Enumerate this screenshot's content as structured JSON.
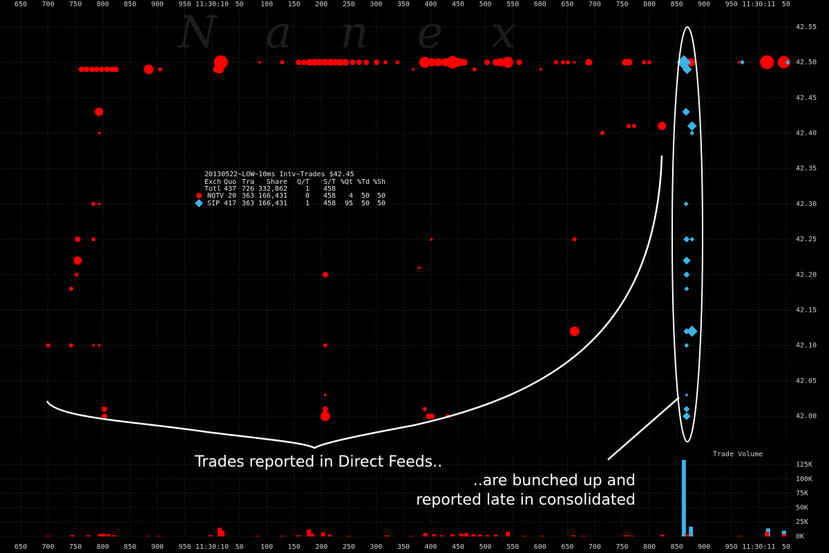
{
  "chart_data": [
    {
      "type": "scatter",
      "watermark": "Nanex",
      "xlim": [
        612,
        2059
      ],
      "xticks": [
        650,
        700,
        750,
        800,
        850,
        900,
        950,
        {
          "value": 1000,
          "label": "11:30:10"
        },
        {
          "value": 1050,
          "label": "50"
        },
        {
          "value": 1100,
          "label": "100"
        },
        {
          "value": 1150,
          "label": "150"
        },
        {
          "value": 1200,
          "label": "200"
        },
        {
          "value": 1250,
          "label": "250"
        },
        {
          "value": 1300,
          "label": "300"
        },
        {
          "value": 1350,
          "label": "350"
        },
        {
          "value": 1400,
          "label": "400"
        },
        {
          "value": 1450,
          "label": "450"
        },
        {
          "value": 1500,
          "label": "500"
        },
        {
          "value": 1550,
          "label": "550"
        },
        {
          "value": 1600,
          "label": "600"
        },
        {
          "value": 1650,
          "label": "650"
        },
        {
          "value": 1700,
          "label": "700"
        },
        {
          "value": 1750,
          "label": "750"
        },
        {
          "value": 1800,
          "label": "800"
        },
        {
          "value": 1850,
          "label": "850"
        },
        {
          "value": 1900,
          "label": "900"
        },
        {
          "value": 1950,
          "label": "950"
        },
        {
          "value": 2000,
          "label": "11:30:11"
        },
        {
          "value": 2050,
          "label": "50"
        }
      ],
      "ylim": [
        41.963,
        42.588
      ],
      "yticks": [
        {
          "value": 42,
          "label": "42.00"
        },
        42.05,
        {
          "value": 42.1,
          "label": "42.10"
        },
        42.15,
        {
          "value": 42.2,
          "label": "42.20"
        },
        42.25,
        {
          "value": 42.3,
          "label": "42.30"
        },
        42.35,
        {
          "value": 42.4,
          "label": "42.40"
        },
        42.45,
        {
          "value": 42.5,
          "label": "42.50"
        },
        42.55
      ],
      "grid": true,
      "stats": {
        "title": "20130522~LOW~10ms Intv~Trades $42.45",
        "header": [
          "Exch",
          "Quo",
          "Tra",
          "Share",
          "Q/T",
          "S/T",
          "%Qt",
          "%Td",
          "%Sh"
        ],
        "total": [
          "Totl",
          "437",
          "726",
          "332,862",
          "1",
          "458"
        ]
      },
      "series": [
        {
          "name": "NQTV",
          "color": "#ff0000",
          "marker": "circle",
          "stats": [
            "20",
            "363",
            "166,431",
            "0",
            "458",
            "4",
            "50",
            "50"
          ],
          "x": [
            761,
            770,
            780,
            789,
            798,
            808,
            817,
            824,
            884,
            905,
            1008,
            1014,
            1016,
            1087,
            1128,
            1158,
            1168,
            1178,
            1187,
            1196,
            1206,
            1216,
            1225,
            1234,
            1244,
            1257,
            1269,
            1282,
            1301,
            1317,
            1339,
            1368,
            1389,
            1402,
            1414,
            1427,
            1440,
            1452,
            1461,
            1480,
            1503,
            1519,
            1528,
            1541,
            1562,
            1601,
            1629,
            1642,
            1651,
            1663,
            1689,
            1756,
            1762,
            1790,
            1800,
            1876,
            1964,
            2015,
            2046,
            793,
            794,
            1714,
            1762,
            1772,
            1823,
            783,
            794,
            754,
            783,
            1401,
            1663,
            754,
            1379,
            752,
            1207,
            742,
            1663,
            700,
            742,
            783,
            794,
            1207,
            1207,
            803,
            1207,
            1389,
            803,
            1207,
            1396,
            1402,
            1431
          ],
          "values": [
            42.49,
            42.49,
            42.49,
            42.49,
            42.49,
            42.49,
            42.49,
            42.49,
            42.49,
            42.49,
            42.49,
            42.49,
            42.5,
            42.5,
            42.5,
            42.5,
            42.5,
            42.5,
            42.5,
            42.5,
            42.5,
            42.5,
            42.5,
            42.5,
            42.5,
            42.5,
            42.5,
            42.5,
            42.5,
            42.5,
            42.5,
            42.49,
            42.5,
            42.5,
            42.5,
            42.5,
            42.5,
            42.5,
            42.5,
            42.49,
            42.5,
            42.5,
            42.5,
            42.5,
            42.5,
            42.49,
            42.5,
            42.5,
            42.5,
            42.5,
            42.5,
            42.5,
            42.5,
            42.5,
            42.5,
            42.5,
            42.5,
            42.5,
            42.5,
            42.43,
            42.4,
            42.4,
            42.41,
            42.41,
            42.41,
            42.3,
            42.3,
            42.25,
            42.25,
            42.25,
            42.25,
            42.22,
            42.21,
            42.2,
            42.2,
            42.18,
            42.12,
            42.1,
            42.1,
            42.1,
            42.1,
            42.1,
            42.03,
            42.01,
            42.01,
            42.01,
            42,
            42,
            42,
            42,
            42
          ],
          "sizes": [
            4,
            4,
            4,
            4,
            4,
            4,
            4,
            4,
            7,
            3,
            5,
            6,
            10,
            2,
            3,
            4,
            4,
            5,
            5,
            5,
            5,
            5,
            5,
            5,
            5,
            4,
            4,
            4,
            4,
            3,
            3,
            2,
            8,
            6,
            6,
            6,
            9,
            6,
            5,
            3,
            4,
            5,
            6,
            8,
            4,
            2,
            3,
            3,
            3,
            2,
            5,
            5,
            5,
            3,
            3,
            6,
            2,
            10,
            9,
            6,
            2,
            3,
            3,
            3,
            6,
            3,
            2,
            4,
            3,
            2,
            3,
            6,
            2,
            3,
            4,
            3,
            7,
            3,
            3,
            2,
            2,
            3,
            2,
            4,
            4,
            3,
            4,
            7,
            4,
            4,
            3
          ]
        },
        {
          "name": "SIP",
          "color": "#3cb4e6",
          "marker": "diamond",
          "stats": [
            "417",
            "363",
            "166,431",
            "1",
            "458",
            "95",
            "50",
            "50"
          ],
          "x": [
            1863,
            1869,
            1867,
            1878,
            1878,
            1867,
            1868,
            1878,
            1868,
            1868,
            1868,
            1868,
            1878,
            1868,
            1868,
            1868,
            1868,
            1970,
            2053
          ],
          "values": [
            42.5,
            42.49,
            42.43,
            42.41,
            42.4,
            42.3,
            42.25,
            42.25,
            42.22,
            42.2,
            42.18,
            42.12,
            42.12,
            42.1,
            42.03,
            42.01,
            42,
            42.5,
            42.5
          ],
          "sizes": [
            9,
            6,
            5,
            6,
            3,
            3,
            4,
            3,
            5,
            4,
            3,
            4,
            7,
            3,
            2,
            4,
            5,
            3,
            3
          ]
        }
      ],
      "annotations": [
        "Trades reported in Direct Feeds..",
        "..are bunched up and",
        "reported late in consolidated"
      ]
    },
    {
      "type": "bar",
      "title": "Trade Volume",
      "xlim": [
        612,
        2059
      ],
      "ylim": [
        0,
        139400
      ],
      "yticks": [
        {
          "value": 0,
          "label": "0K"
        },
        {
          "value": 25000,
          "label": "25K"
        },
        {
          "value": 50000,
          "label": "50K"
        },
        {
          "value": 75000,
          "label": "75K"
        },
        {
          "value": 100000,
          "label": "100K"
        },
        {
          "value": 125000,
          "label": "125K"
        }
      ],
      "grid": true,
      "series": [
        {
          "color": "#3cb4e6",
          "x": [
            1863,
            1876,
            2017,
            2046
          ],
          "values": [
            133000,
            17000,
            14000,
            10000
          ]
        },
        {
          "color": "#ff0000",
          "x": [
            700,
            745,
            774,
            795,
            801,
            810,
            821,
            884,
            903,
            997,
            1014,
            1019,
            1082,
            1128,
            1158,
            1177,
            1183,
            1203,
            1216,
            1250,
            1320,
            1364,
            1390,
            1406,
            1421,
            1440,
            1456,
            1465,
            1478,
            1490,
            1503,
            1519,
            1541,
            1572,
            1604,
            1661,
            1680,
            1756,
            1768,
            1823,
            1869,
            1964,
            2015,
            2046
          ],
          "values": [
            1000,
            2000,
            2000,
            4000,
            5000,
            4000,
            2000,
            1000,
            1000,
            2000,
            15000,
            10000,
            1000,
            1000,
            2000,
            12000,
            5000,
            7000,
            3000,
            1000,
            2000,
            1000,
            6000,
            4000,
            2000,
            4000,
            5000,
            6000,
            4000,
            3000,
            2000,
            3000,
            8000,
            1000,
            1000,
            2000,
            1000,
            2000,
            1000,
            3000,
            4000,
            1000,
            8000,
            4000
          ]
        }
      ]
    }
  ]
}
